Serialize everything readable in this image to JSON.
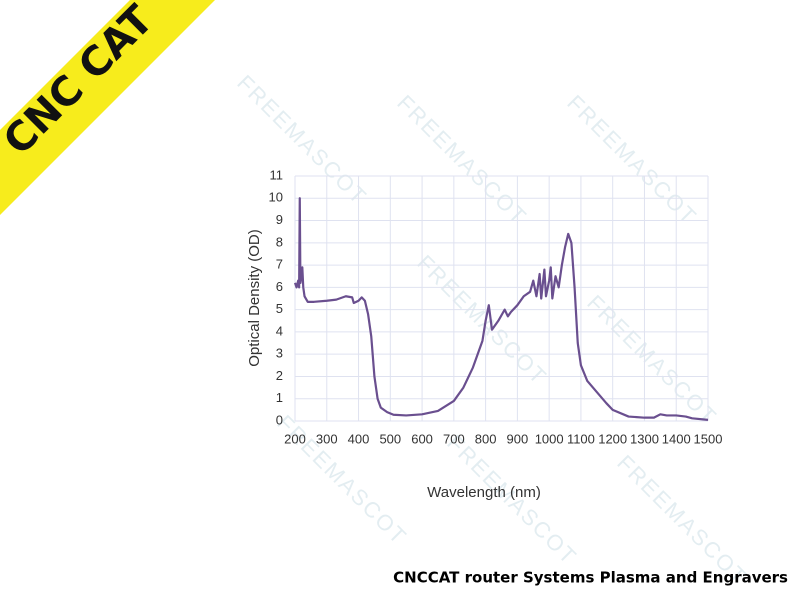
{
  "banner": "CNC CAT",
  "footer": "CNCCAT router Systems Plasma and Engravers",
  "watermark": "FREEMASCOT",
  "chart_data": {
    "type": "line",
    "x_label": "Wavelength (nm)",
    "y_label": "Optical Density (OD)",
    "xlim": [
      200,
      1500
    ],
    "ylim": [
      0,
      11
    ],
    "xticks": [
      200,
      300,
      400,
      500,
      600,
      700,
      800,
      900,
      1000,
      1100,
      1200,
      1300,
      1400,
      1500
    ],
    "yticks": [
      0,
      1,
      2,
      3,
      4,
      5,
      6,
      7,
      8,
      9,
      10,
      11
    ],
    "grid": true,
    "series": [
      {
        "color": "#6a4f8f",
        "x": [
          200,
          205,
          210,
          213,
          215,
          217,
          220,
          223,
          226,
          230,
          240,
          260,
          300,
          330,
          360,
          380,
          385,
          400,
          410,
          420,
          430,
          440,
          450,
          460,
          470,
          490,
          510,
          550,
          600,
          650,
          700,
          730,
          760,
          790,
          800,
          810,
          820,
          840,
          860,
          870,
          880,
          900,
          920,
          940,
          950,
          960,
          970,
          975,
          985,
          990,
          1000,
          1005,
          1010,
          1020,
          1030,
          1040,
          1050,
          1060,
          1070,
          1080,
          1090,
          1100,
          1120,
          1150,
          1180,
          1200,
          1250,
          1300,
          1330,
          1350,
          1370,
          1400,
          1430,
          1450,
          1500
        ],
        "values": [
          6.2,
          6.0,
          6.3,
          6.0,
          10.0,
          6.2,
          6.5,
          6.9,
          6.0,
          5.6,
          5.35,
          5.35,
          5.4,
          5.45,
          5.6,
          5.55,
          5.3,
          5.4,
          5.55,
          5.4,
          4.8,
          3.8,
          2.0,
          1.0,
          0.6,
          0.4,
          0.28,
          0.25,
          0.3,
          0.45,
          0.9,
          1.5,
          2.4,
          3.6,
          4.5,
          5.2,
          4.1,
          4.5,
          5.0,
          4.7,
          4.9,
          5.2,
          5.6,
          5.8,
          6.3,
          5.6,
          6.6,
          5.5,
          6.8,
          5.6,
          6.3,
          6.9,
          5.5,
          6.5,
          6.0,
          7.0,
          7.8,
          8.4,
          8.0,
          6.0,
          3.5,
          2.5,
          1.8,
          1.3,
          0.8,
          0.5,
          0.2,
          0.15,
          0.15,
          0.3,
          0.25,
          0.25,
          0.2,
          0.12,
          0.05
        ]
      }
    ]
  }
}
